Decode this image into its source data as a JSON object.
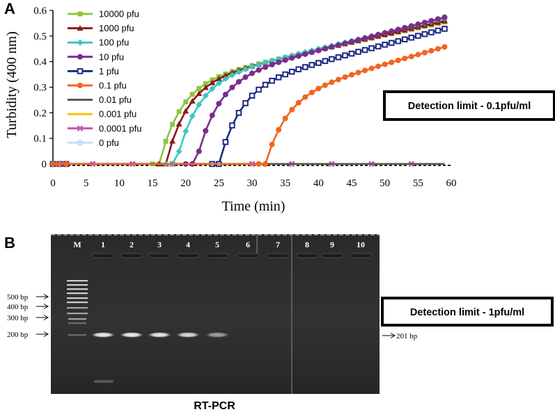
{
  "panel_a": {
    "letter": "A",
    "detection_text": "Detection limit - 0.1pfu/ml"
  },
  "panel_b": {
    "letter": "B",
    "detection_text": "Detection limit - 1pfu/ml",
    "caption": "RT-PCR",
    "lanes": [
      "M",
      "1",
      "2",
      "3",
      "4",
      "5",
      "6",
      "7",
      "8",
      "9",
      "10"
    ],
    "ladder_labels": [
      "500 bp",
      "400 bp",
      "300 bp",
      "200 bp"
    ],
    "band_label": "201 bp",
    "band_intensity": [
      0.95,
      0.95,
      0.92,
      0.85,
      0.55,
      0,
      0,
      0,
      0,
      0
    ]
  },
  "chart_data": {
    "type": "line",
    "xlabel": "Time (min)",
    "ylabel": "Turbidity (400 nm)",
    "xlim": [
      0,
      60
    ],
    "ylim": [
      0,
      0.6
    ],
    "xticks": [
      "0",
      "5",
      "10",
      "15",
      "20",
      "25",
      "30",
      "35",
      "40",
      "45",
      "50",
      "55",
      "60"
    ],
    "yticks": [
      "0",
      "0.1",
      "0.2",
      "0.3",
      "0.4",
      "0.5",
      "0.6"
    ],
    "legend_position": "top-left",
    "series": [
      {
        "name": "10000 pfu",
        "color": "#8dc63f",
        "marker": "square",
        "onset": 16,
        "max": 0.56
      },
      {
        "name": "1000 pfu",
        "color": "#8b1a1a",
        "marker": "triangle",
        "onset": 17,
        "max": 0.565
      },
      {
        "name": "100 pfu",
        "color": "#40c4c4",
        "marker": "diamond",
        "onset": 18.5,
        "max": 0.575
      },
      {
        "name": "10 pfu",
        "color": "#7b2d8b",
        "marker": "circle",
        "onset": 21.5,
        "max": 0.58
      },
      {
        "name": "1 pfu",
        "color": "#1c2a80",
        "marker": "open-square",
        "onset": 25,
        "max": 0.535
      },
      {
        "name": "0.1 pfu",
        "color": "#f26522",
        "marker": "circle",
        "onset": 32,
        "max": 0.465
      },
      {
        "name": "0.01 pfu",
        "color": "#555555",
        "marker": "line",
        "onset": null,
        "max": 0
      },
      {
        "name": "0.001 pfu",
        "color": "#f7c600",
        "marker": "line",
        "onset": null,
        "max": 0
      },
      {
        "name": "0.0001 pfu",
        "color": "#c44fb0",
        "marker": "x",
        "onset": null,
        "max": 0
      },
      {
        "name": "0 pfu",
        "color": "#c6e3f2",
        "marker": "star",
        "onset": null,
        "max": 0
      }
    ]
  }
}
